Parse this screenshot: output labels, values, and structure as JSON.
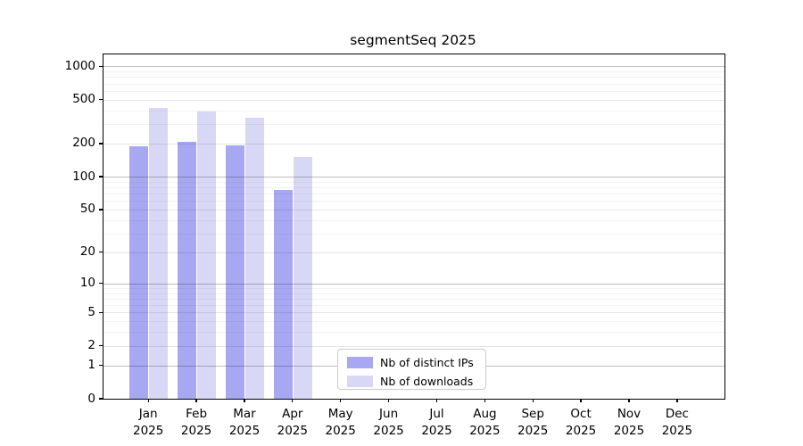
{
  "chart_data": {
    "type": "bar",
    "title": "segmentSeq 2025",
    "categories": [
      "Jan 2025",
      "Feb 2025",
      "Mar 2025",
      "Apr 2025",
      "May 2025",
      "Jun 2025",
      "Jul 2025",
      "Aug 2025",
      "Sep 2025",
      "Oct 2025",
      "Nov 2025",
      "Dec 2025"
    ],
    "series": [
      {
        "name": "Nb of distinct IPs",
        "color": "#a8a8f2",
        "values": [
          188,
          208,
          194,
          75,
          null,
          null,
          null,
          null,
          null,
          null,
          null,
          null
        ]
      },
      {
        "name": "Nb of downloads",
        "color": "#d8d8f6",
        "values": [
          420,
          390,
          345,
          150,
          null,
          null,
          null,
          null,
          null,
          null,
          null,
          null
        ]
      }
    ],
    "xlabel": "",
    "ylabel": "",
    "yscale": "log1p",
    "y_ticks": [
      1000,
      500,
      200,
      100,
      50,
      20,
      10,
      5,
      2,
      1,
      0
    ],
    "ylim": [
      0,
      1282
    ],
    "grid": "horizontal, minor and major, drawn over bars",
    "legend_position": "inside lower-center"
  },
  "legend": {
    "items": [
      {
        "label": "Nb of distinct IPs",
        "color": "#a8a8f2"
      },
      {
        "label": "Nb of downloads",
        "color": "#d8d8f6"
      }
    ]
  },
  "colors": {
    "axis": "#000000",
    "background": "#ffffff",
    "grid_major": "#c4c4c4",
    "grid_minor": "#efefef"
  }
}
